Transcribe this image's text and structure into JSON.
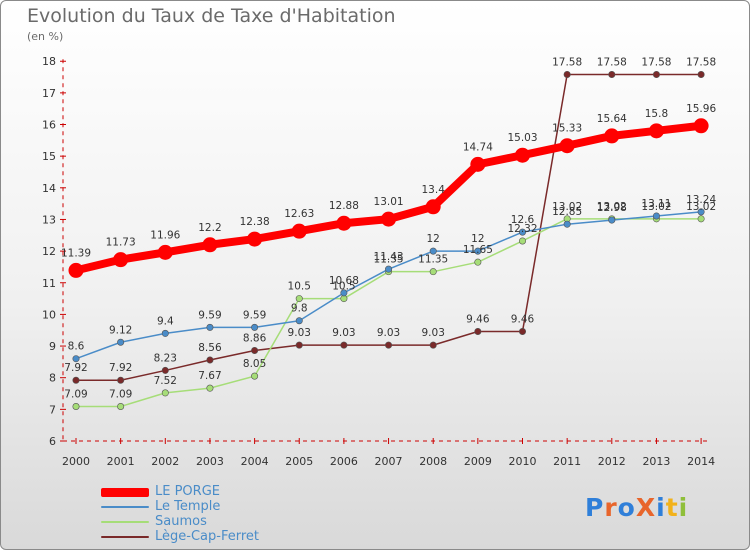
{
  "header": {
    "title": "Evolution du Taux de Taxe d'Habitation",
    "subtitle": "(en %)"
  },
  "logo": {
    "text": "ProXiti",
    "letter_colors": [
      "#2f7fd9",
      "#e8652b",
      "#2f7fd9",
      "#e8652b",
      "#2f7fd9",
      "#f2b21b",
      "#8fbf3a"
    ]
  },
  "chart_data": {
    "type": "line",
    "x": [
      2000,
      2001,
      2002,
      2003,
      2004,
      2005,
      2006,
      2007,
      2008,
      2009,
      2010,
      2011,
      2012,
      2013,
      2014
    ],
    "ylim": [
      6,
      18
    ],
    "yticks": [
      6,
      7,
      8,
      9,
      10,
      11,
      12,
      13,
      14,
      15,
      16,
      17,
      18
    ],
    "title": "Evolution du Taux de Taxe d'Habitation",
    "ylabel": "(en %)",
    "grid": false,
    "legend_position": "bottom-left",
    "series": [
      {
        "name": "LE PORGE",
        "color": "#ff0000",
        "values": [
          11.39,
          11.73,
          11.96,
          12.2,
          12.38,
          12.63,
          12.88,
          13.01,
          13.4,
          14.74,
          15.03,
          15.33,
          15.64,
          15.8,
          15.96
        ],
        "labels": [
          "11.39",
          "11.73",
          "11.96",
          "12.2",
          "12.38",
          "12.63",
          "12.88",
          "13.01",
          "13.4",
          "14.74",
          "15.03",
          "15.33",
          "15.64",
          "15.8",
          "15.96"
        ]
      },
      {
        "name": "Le Temple",
        "color": "#4a8cc8",
        "values": [
          8.6,
          9.12,
          9.4,
          9.59,
          9.59,
          9.8,
          10.68,
          11.43,
          12,
          12,
          12.6,
          12.85,
          12.98,
          13.11,
          13.24
        ],
        "labels": [
          "8.6",
          "9.12",
          "9.4",
          "9.59",
          "9.59",
          "9.8",
          "10.68",
          "11.43",
          "12",
          "12",
          "12.6",
          "12.85",
          "12.98",
          "13.11",
          "13.24"
        ]
      },
      {
        "name": "Saumos",
        "color": "#a6dd78",
        "values": [
          7.09,
          7.09,
          7.52,
          7.67,
          8.05,
          10.5,
          10.5,
          11.35,
          11.35,
          11.65,
          12.32,
          13.02,
          13.02,
          13.02,
          13.02
        ],
        "labels": [
          "7.09",
          "7.09",
          "7.52",
          "7.67",
          "8.05",
          "10.5",
          "10.5",
          "11.35",
          "11.35",
          "11.65",
          "12.32",
          "13.02",
          "13.02",
          "13.02",
          "13.02"
        ]
      },
      {
        "name": "Lège-Cap-Ferret",
        "color": "#7a2a2a",
        "values": [
          7.92,
          7.92,
          8.23,
          8.56,
          8.86,
          9.03,
          9.03,
          9.03,
          9.03,
          9.46,
          9.46,
          17.58,
          17.58,
          17.58,
          17.58
        ],
        "labels": [
          "7.92",
          "7.92",
          "8.23",
          "8.56",
          "8.86",
          "9.03",
          "9.03",
          "9.03",
          "9.03",
          "9.46",
          "9.46",
          "17.58",
          "17.58",
          "17.58",
          "17.58"
        ]
      }
    ]
  }
}
